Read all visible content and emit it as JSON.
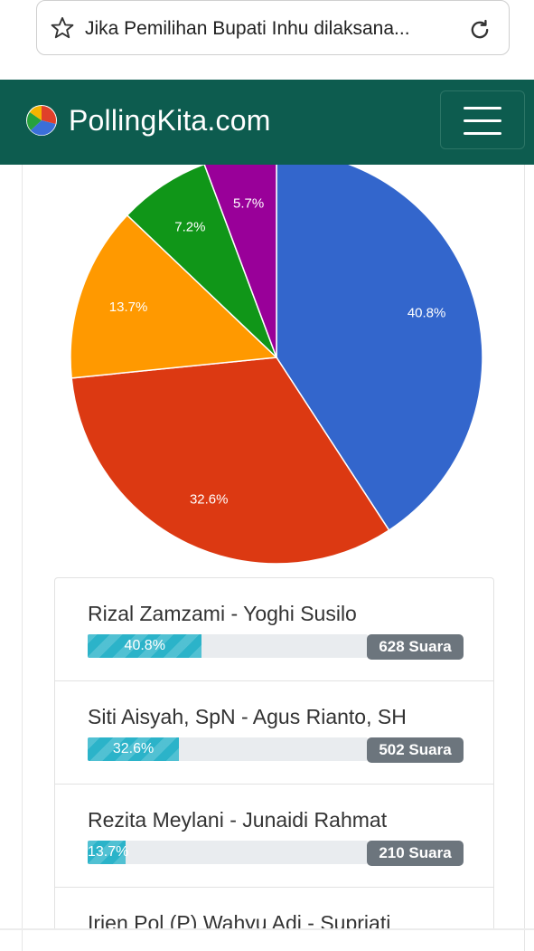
{
  "browser": {
    "tab_title": "Jika Pemilihan Bupati Inhu dilaksana..."
  },
  "header": {
    "brand": "PollingKita.com"
  },
  "chart_data": {
    "type": "pie",
    "slices": [
      {
        "label": "40.8%",
        "value": 40.8,
        "color": "#3366cc"
      },
      {
        "label": "32.6%",
        "value": 32.6,
        "color": "#dc3912"
      },
      {
        "label": "13.7%",
        "value": 13.7,
        "color": "#ff9900"
      },
      {
        "label": "7.2%",
        "value": 7.2,
        "color": "#109618"
      },
      {
        "label": "5.7%",
        "value": 5.7,
        "color": "#990099"
      }
    ],
    "start_angle_deg": 0,
    "direction": "clockwise"
  },
  "results": [
    {
      "name": "Rizal Zamzami - Yoghi Susilo",
      "percent_label": "40.8%",
      "percent": 40.8,
      "votes": "628 Suara"
    },
    {
      "name": "Siti Aisyah, SpN - Agus Rianto, SH",
      "percent_label": "32.6%",
      "percent": 32.6,
      "votes": "502 Suara"
    },
    {
      "name": "Rezita Meylani - Junaidi Rahmat",
      "percent_label": "13.7%",
      "percent": 13.7,
      "votes": "210 Suara"
    },
    {
      "name": "Irjen Pol (P) Wahyu Adi - Supriati",
      "percent_label": "",
      "percent": 7.2,
      "votes": ""
    }
  ],
  "colors": {
    "header_bg": "#0d5c4f",
    "progress_fill": "#2bb3c9",
    "badge_bg": "#6c757d"
  },
  "icons": {
    "bookmark": "star-icon",
    "reload": "reload-icon",
    "logo": "pie-logo-icon",
    "menu": "hamburger-icon"
  }
}
